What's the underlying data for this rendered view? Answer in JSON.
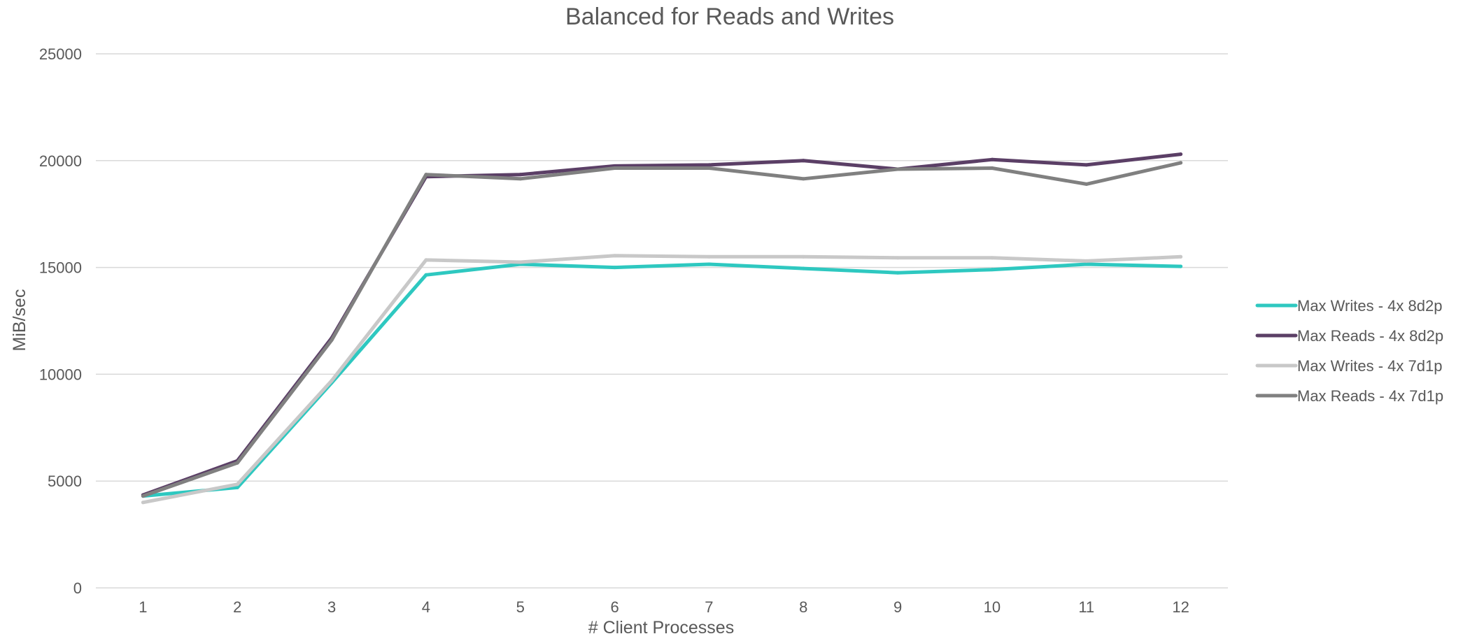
{
  "chart_data": {
    "type": "line",
    "title": "Balanced for Reads and Writes",
    "xlabel": "# Client Processes",
    "ylabel": "MiB/sec",
    "x": [
      1,
      2,
      3,
      4,
      5,
      6,
      7,
      8,
      9,
      10,
      11,
      12
    ],
    "ylim": [
      0,
      25000
    ],
    "yticks": [
      0,
      5000,
      10000,
      15000,
      20000,
      25000
    ],
    "grid": true,
    "legend_position": "right",
    "series": [
      {
        "name": "Max Writes - 4x 8d2p",
        "color": "#2ec8c0",
        "values": [
          4300,
          4700,
          9600,
          14650,
          15150,
          15000,
          15150,
          14950,
          14750,
          14900,
          15150,
          15050
        ]
      },
      {
        "name": "Max Reads - 4x 8d2p",
        "color": "#5b3f66",
        "values": [
          4350,
          5950,
          11700,
          19250,
          19350,
          19750,
          19800,
          20000,
          19600,
          20050,
          19800,
          20300
        ]
      },
      {
        "name": "Max Writes - 4x 7d1p",
        "color": "#c8c8c8",
        "values": [
          4000,
          4850,
          9700,
          15350,
          15250,
          15550,
          15500,
          15500,
          15450,
          15450,
          15300,
          15500
        ]
      },
      {
        "name": "Max Reads - 4x 7d1p",
        "color": "#808080",
        "values": [
          4300,
          5850,
          11600,
          19350,
          19150,
          19650,
          19650,
          19150,
          19600,
          19650,
          18900,
          19900
        ]
      }
    ]
  }
}
